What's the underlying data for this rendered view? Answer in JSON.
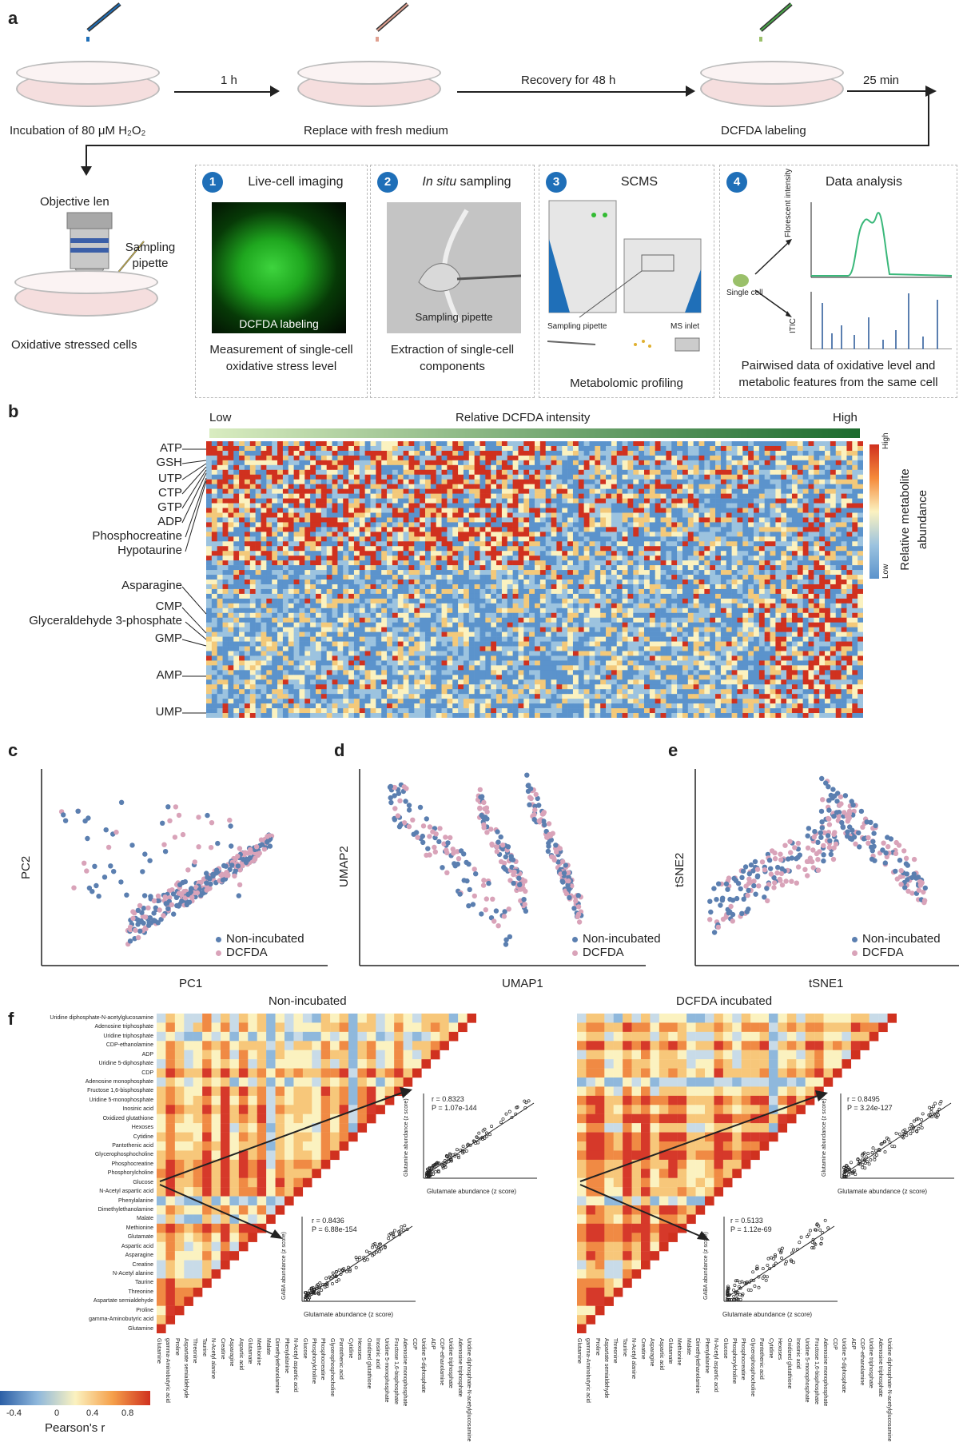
{
  "panels": {
    "a": "a",
    "b": "b",
    "c": "c",
    "d": "d",
    "e": "e",
    "f": "f"
  },
  "workflow": {
    "steps_top": [
      {
        "caption": "Incubation of 80 μM H₂O₂"
      },
      {
        "caption": "Replace with fresh medium"
      },
      {
        "caption": "DCFDA labeling"
      }
    ],
    "arrows": {
      "a1": "1 h",
      "a2": "Recovery for 48 h",
      "a3": "25 min"
    },
    "objective": "Objective len",
    "pipette": "Sampling pipette",
    "stressed": "Oxidative stressed cells",
    "boxes": [
      {
        "num": "1",
        "title": "Live-cell imaging",
        "inner": "DCFDA labeling",
        "caption": "Measurement of single-cell oxidative stress level"
      },
      {
        "num": "2",
        "title_italic": "In situ",
        "title_rest": " sampling",
        "inner": "Sampling pipette",
        "caption": "Extraction of single-cell components"
      },
      {
        "num": "3",
        "title": "SCMS",
        "inner_left": "Sampling pipette",
        "inner_right": "MS inlet",
        "caption": "Metabolomic profiling"
      },
      {
        "num": "4",
        "title": "Data analysis",
        "inner": "Single cell",
        "y1": "Florescent intensity",
        "y2": "ITIC",
        "caption": "Pairwised data of oxidative level and metabolic features from the same cell"
      }
    ]
  },
  "heatmap": {
    "bar_low": "Low",
    "bar_title": "Relative DCFDA intensity",
    "bar_high": "High",
    "legend_high": "High",
    "legend_low": "Low",
    "legend_title": "Relative metabolite abundance",
    "colors": {
      "low": "#5b93cc",
      "mid": "#fbf2c0",
      "high": "#d0311f"
    },
    "metabolites": [
      "ATP",
      "GSH",
      "UTP",
      "CTP",
      "GTP",
      "ADP",
      "Phosphocreatine",
      "Hypotaurine",
      "Asparagine",
      "CMP",
      "Glyceraldehyde 3-phosphate",
      "GMP",
      "AMP",
      "UMP"
    ]
  },
  "scatter": {
    "colors": {
      "non": "#5b7fb0",
      "dcfda": "#d9a3b9"
    },
    "plots": [
      {
        "xlabel": "PC1",
        "ylabel": "PC2",
        "legend1": "Non-incubated",
        "legend2": "DCFDA"
      },
      {
        "xlabel": "UMAP1",
        "ylabel": "UMAP2",
        "legend1": "Non-incubated",
        "legend2": "DCFDA"
      },
      {
        "xlabel": "tSNE1",
        "ylabel": "tSNE2",
        "legend1": "Non-incubated",
        "legend2": "DCFDA"
      }
    ]
  },
  "correlation": {
    "left_title": "Non-incubated",
    "right_title": "DCFDA incubated",
    "inset_left_top": {
      "r": "r = 0.8323",
      "p": "P = 1.07e-144",
      "xlabel": "Glutamate abundance (z score)",
      "ylabel": "Glutamine abundance (z score)"
    },
    "inset_left_bottom": {
      "r": "r = 0.8436",
      "p": "P = 6.88e-154",
      "xlabel": "Glutamate abundance (z score)",
      "ylabel": "GABA abundance (z score)"
    },
    "inset_right_top": {
      "r": "r = 0.8495",
      "p": "P = 3.24e-127",
      "xlabel": "Glutamate abundance (z score)",
      "ylabel": "Glutamine abundance (z score)"
    },
    "inset_right_bottom": {
      "r": "r = 0.5133",
      "p": "P = 1.12e-69",
      "xlabel": "Glutamate abundance (z score)",
      "ylabel": "GABA abundance (z score)"
    },
    "colorbar_ticks": [
      "-0.4",
      "0",
      "0.4",
      "0.8"
    ],
    "colorbar_label": "Pearson's r",
    "row_labels": [
      "Uridine diphosphate-N-acetylglucosamine",
      "Adenosine triphosphate",
      "Uridine triphosphate",
      "CDP-ethanolamine",
      "ADP",
      "Uridine 5-diphosphate",
      "CDP",
      "Adenosine monophosphate",
      "Fructose 1,6-bisphosphate",
      "Uridine 5-monophosphate",
      "Inosinic acid",
      "Oxidized glutathione",
      "Hexoses",
      "Cytidine",
      "Pantothenic acid",
      "Glycerophosphocholine",
      "Phosphocreatine",
      "Phosphorylcholine",
      "Glucose",
      "N-Acetyl aspartic acid",
      "Phenylalanine",
      "Dimethylethanolamine",
      "Malate",
      "Methionine",
      "Glutamate",
      "Aspartic acid",
      "Asparagine",
      "Creatine",
      "N-Acetyl alanine",
      "Taurine",
      "Threonine",
      "Aspartate semialdehyde",
      "Proline",
      "gamma-Aminobutyric acid",
      "Glutamine"
    ]
  }
}
